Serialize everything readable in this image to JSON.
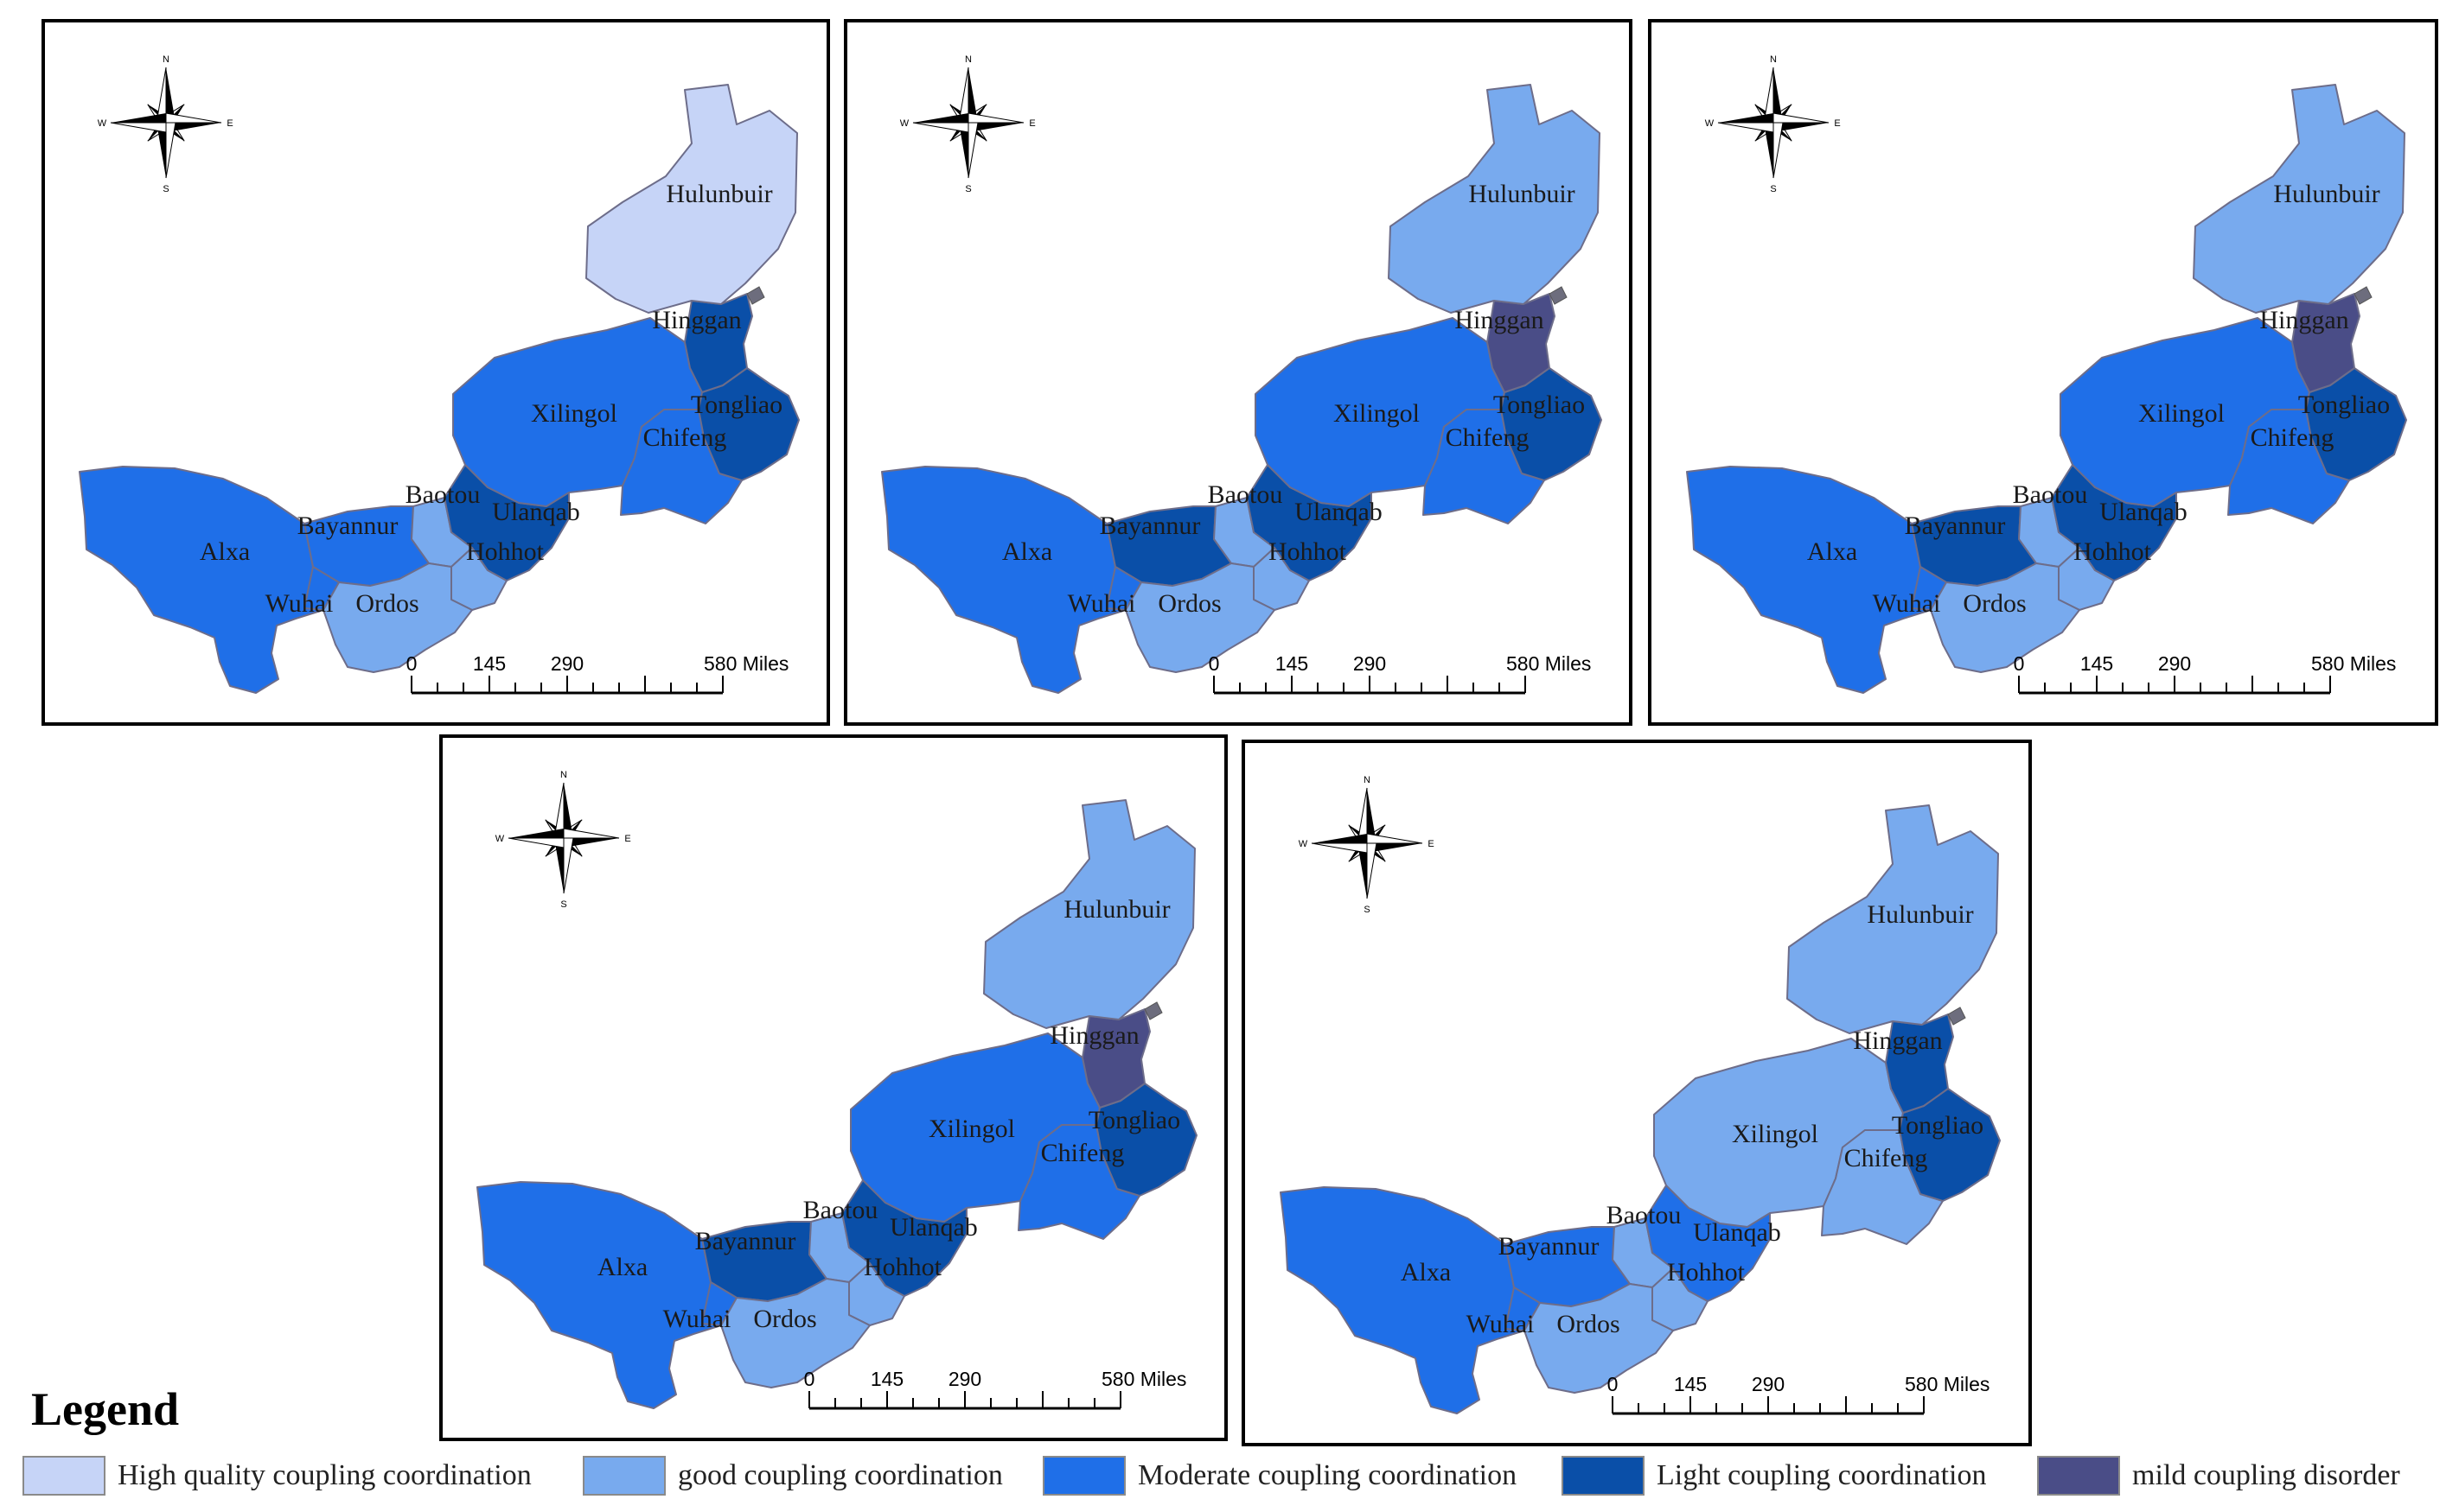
{
  "legend": {
    "title": "Legend",
    "items": [
      {
        "label": "High quality coupling coordination",
        "color": "#c6d4f7"
      },
      {
        "label": "good coupling coordination",
        "color": "#78aaee"
      },
      {
        "label": "Moderate coupling coordination",
        "color": "#1f6fe8"
      },
      {
        "label": "Light coupling coordination",
        "color": "#0a4fa8"
      },
      {
        "label": "mild coupling disorder",
        "color": "#4a4d87"
      }
    ]
  },
  "compass": {
    "north": "N",
    "south": "S",
    "east": "E",
    "west": "W"
  },
  "scale_bar": {
    "ticks": [
      "0",
      "145",
      "290",
      "580 Miles"
    ]
  },
  "region_names": {
    "hulunbuir": "Hulunbuir",
    "hinggan": "Hinggan",
    "tongliao": "Tongliao",
    "xilingol": "Xilingol",
    "chifeng": "Chifeng",
    "ulanqab": "Ulanqab",
    "baotou": "Baotou",
    "hohhot": "Hohhot",
    "bayannur": "Bayannur",
    "alxa": "Alxa",
    "wuhai": "Wuhai",
    "ordos": "Ordos"
  },
  "maps": [
    {
      "classes": {
        "hulunbuir": 0,
        "hinggan": 3,
        "tongliao": 3,
        "xilingol": 2,
        "chifeng": 2,
        "ulanqab": 3,
        "baotou": 1,
        "hohhot": 1,
        "bayannur": 2,
        "alxa": 2,
        "wuhai": 2,
        "ordos": 1
      }
    },
    {
      "classes": {
        "hulunbuir": 1,
        "hinggan": 4,
        "tongliao": 3,
        "xilingol": 2,
        "chifeng": 2,
        "ulanqab": 3,
        "baotou": 1,
        "hohhot": 1,
        "bayannur": 3,
        "alxa": 2,
        "wuhai": 2,
        "ordos": 1
      }
    },
    {
      "classes": {
        "hulunbuir": 1,
        "hinggan": 4,
        "tongliao": 3,
        "xilingol": 2,
        "chifeng": 2,
        "ulanqab": 3,
        "baotou": 1,
        "hohhot": 1,
        "bayannur": 3,
        "alxa": 2,
        "wuhai": 2,
        "ordos": 1
      }
    },
    {
      "classes": {
        "hulunbuir": 1,
        "hinggan": 4,
        "tongliao": 3,
        "xilingol": 2,
        "chifeng": 2,
        "ulanqab": 3,
        "baotou": 1,
        "hohhot": 1,
        "bayannur": 3,
        "alxa": 2,
        "wuhai": 2,
        "ordos": 1
      }
    },
    {
      "classes": {
        "hulunbuir": 1,
        "hinggan": 3,
        "tongliao": 3,
        "xilingol": 1,
        "chifeng": 1,
        "ulanqab": 2,
        "baotou": 1,
        "hohhot": 1,
        "bayannur": 2,
        "alxa": 2,
        "wuhai": 2,
        "ordos": 1
      }
    }
  ]
}
